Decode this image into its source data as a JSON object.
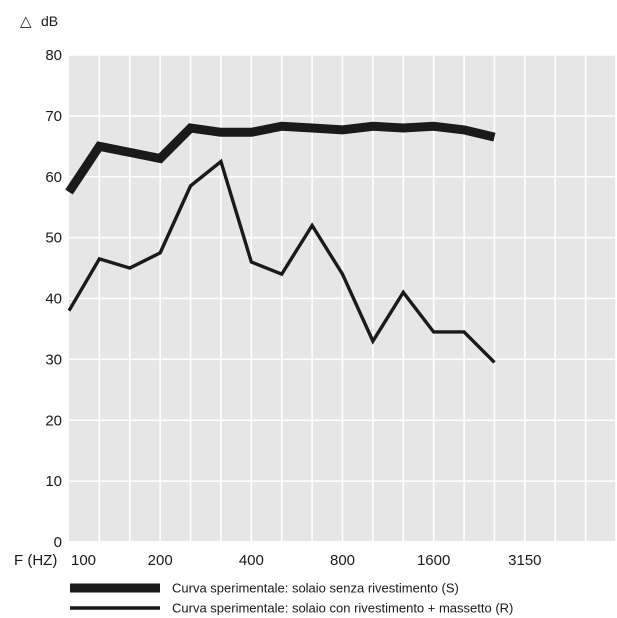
{
  "chart_data": {
    "type": "line",
    "ylabel": "dB",
    "ylabel_symbol": "△",
    "xlabel": "F (HZ)",
    "ylim": [
      0,
      80
    ],
    "yticks": [
      0,
      10,
      20,
      30,
      40,
      50,
      60,
      70,
      80
    ],
    "x_tick_labels": [
      "100",
      "200",
      "400",
      "800",
      "1600",
      "3150"
    ],
    "x_tick_indices": [
      0,
      3,
      6,
      9,
      12,
      15
    ],
    "x_slots": 18,
    "x_frequencies": [
      100,
      125,
      160,
      200,
      250,
      315,
      400,
      500,
      630,
      800,
      1000,
      1250,
      1600,
      2000,
      2500
    ],
    "grid": true,
    "background": "#e6e6e6",
    "grid_color": "#ffffff",
    "line_color": "#1a1a1a",
    "series": [
      {
        "name": "Curva sperimentale: solaio senza rivestimento (S)",
        "style": "thick",
        "values": [
          57.5,
          65.0,
          64.0,
          63.0,
          68.0,
          67.3,
          67.3,
          68.3,
          68.0,
          67.7,
          68.3,
          68.0,
          68.3,
          67.7,
          66.5
        ]
      },
      {
        "name": "Curva sperimentale: solaio con rivestimento + massetto (R)",
        "style": "thin",
        "values": [
          38.0,
          46.5,
          45.0,
          47.5,
          58.5,
          62.5,
          46.0,
          44.0,
          52.0,
          44.0,
          33.0,
          41.0,
          34.5,
          34.5,
          29.5
        ]
      }
    ]
  }
}
